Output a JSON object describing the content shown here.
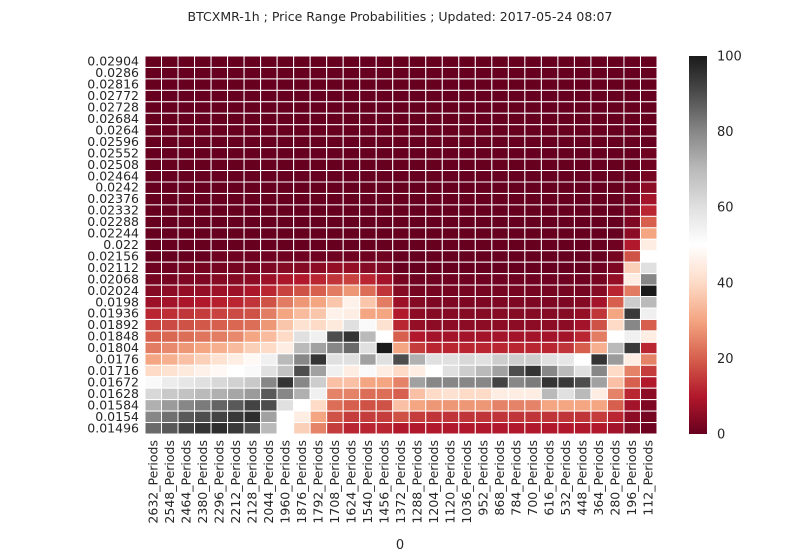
{
  "chart_data": {
    "type": "heatmap",
    "title": "BTCXMR-1h ; Price Range Probabilities ; Updated: 2017-05-24 08:07",
    "xlabel": "0",
    "ylabel": "",
    "x_categories": [
      "2632_Periods",
      "2548_Periods",
      "2464_Periods",
      "2380_Periods",
      "2296_Periods",
      "2212_Periods",
      "2128_Periods",
      "2044_Periods",
      "1960_Periods",
      "1876_Periods",
      "1792_Periods",
      "1708_Periods",
      "1624_Periods",
      "1540_Periods",
      "1456_Periods",
      "1372_Periods",
      "1288_Periods",
      "1204_Periods",
      "1120_Periods",
      "1036_Periods",
      "952_Periods",
      "868_Periods",
      "784_Periods",
      "700_Periods",
      "616_Periods",
      "532_Periods",
      "448_Periods",
      "364_Periods",
      "280_Periods",
      "196_Periods",
      "112_Periods"
    ],
    "y_categories": [
      "0.02904",
      "0.0286",
      "0.02816",
      "0.02772",
      "0.02728",
      "0.02684",
      "0.0264",
      "0.02596",
      "0.02552",
      "0.02508",
      "0.02464",
      "0.0242",
      "0.02376",
      "0.02332",
      "0.02288",
      "0.02244",
      "0.022",
      "0.02156",
      "0.02112",
      "0.02068",
      "0.02024",
      "0.0198",
      "0.01936",
      "0.01892",
      "0.01848",
      "0.01804",
      "0.0176",
      "0.01716",
      "0.01672",
      "0.01628",
      "0.01584",
      "0.0154",
      "0.01496"
    ],
    "values": [
      [
        0,
        0,
        0,
        0,
        0,
        0,
        0,
        0,
        0,
        0,
        0,
        0,
        0,
        0,
        0,
        0,
        0,
        0,
        0,
        0,
        0,
        0,
        0,
        0,
        0,
        0,
        0,
        0,
        0,
        0,
        0
      ],
      [
        0,
        0,
        0,
        0,
        0,
        0,
        0,
        0,
        0,
        0,
        0,
        0,
        0,
        0,
        0,
        0,
        0,
        0,
        0,
        0,
        0,
        0,
        0,
        0,
        0,
        0,
        0,
        0,
        0,
        0,
        0
      ],
      [
        0,
        0,
        0,
        0,
        0,
        0,
        0,
        0,
        0,
        0,
        0,
        0,
        0,
        0,
        0,
        0,
        0,
        0,
        0,
        0,
        0,
        0,
        0,
        0,
        0,
        0,
        0,
        0,
        0,
        0,
        0
      ],
      [
        0,
        0,
        0,
        0,
        0,
        0,
        0,
        0,
        0,
        0,
        0,
        0,
        0,
        0,
        0,
        0,
        0,
        0,
        0,
        0,
        0,
        0,
        0,
        0,
        0,
        0,
        0,
        0,
        0,
        0,
        0
      ],
      [
        0,
        0,
        0,
        0,
        0,
        0,
        0,
        0,
        0,
        0,
        0,
        0,
        0,
        0,
        0,
        0,
        0,
        0,
        0,
        0,
        0,
        0,
        0,
        0,
        0,
        0,
        0,
        0,
        0,
        0,
        0
      ],
      [
        0,
        0,
        0,
        0,
        0,
        0,
        0,
        0,
        0,
        0,
        0,
        0,
        0,
        0,
        0,
        0,
        0,
        0,
        0,
        0,
        0,
        0,
        0,
        0,
        0,
        0,
        0,
        0,
        0,
        0,
        0
      ],
      [
        0,
        0,
        0,
        0,
        0,
        0,
        0,
        0,
        0,
        0,
        0,
        0,
        0,
        0,
        0,
        0,
        0,
        0,
        0,
        0,
        0,
        0,
        0,
        0,
        0,
        0,
        0,
        0,
        0,
        0,
        0
      ],
      [
        0,
        0,
        0,
        0,
        0,
        0,
        0,
        0,
        0,
        0,
        0,
        0,
        0,
        0,
        0,
        0,
        0,
        0,
        0,
        0,
        0,
        0,
        0,
        0,
        0,
        0,
        0,
        0,
        0,
        0,
        0
      ],
      [
        0,
        0,
        0,
        0,
        0,
        0,
        0,
        0,
        0,
        0,
        0,
        0,
        0,
        0,
        0,
        0,
        0,
        0,
        0,
        0,
        0,
        0,
        0,
        0,
        0,
        0,
        0,
        0,
        0,
        0,
        1
      ],
      [
        0,
        0,
        0,
        0,
        0,
        0,
        0,
        0,
        0,
        0,
        0,
        0,
        0,
        0,
        0,
        0,
        0,
        0,
        0,
        0,
        0,
        0,
        0,
        0,
        0,
        0,
        0,
        0,
        0,
        0,
        1
      ],
      [
        0,
        0,
        0,
        0,
        0,
        0,
        0,
        0,
        0,
        0,
        0,
        0,
        0,
        0,
        0,
        0,
        0,
        0,
        0,
        0,
        0,
        0,
        0,
        0,
        0,
        0,
        0,
        0,
        0,
        0,
        2
      ],
      [
        0,
        0,
        0,
        0,
        0,
        0,
        0,
        0,
        0,
        0,
        0,
        0,
        0,
        0,
        0,
        0,
        0,
        0,
        0,
        0,
        0,
        0,
        0,
        0,
        0,
        0,
        0,
        0,
        0,
        1,
        5
      ],
      [
        0,
        0,
        0,
        0,
        0,
        0,
        0,
        0,
        0,
        0,
        0,
        0,
        0,
        0,
        0,
        0,
        0,
        0,
        0,
        0,
        0,
        0,
        0,
        0,
        0,
        0,
        0,
        0,
        0,
        1,
        8
      ],
      [
        0,
        0,
        0,
        0,
        0,
        0,
        0,
        0,
        0,
        0,
        0,
        0,
        0,
        0,
        0,
        0,
        0,
        0,
        0,
        0,
        0,
        0,
        0,
        0,
        0,
        0,
        0,
        0,
        0,
        2,
        12
      ],
      [
        0,
        0,
        0,
        0,
        0,
        0,
        0,
        0,
        0,
        0,
        0,
        0,
        0,
        0,
        0,
        0,
        0,
        0,
        0,
        0,
        0,
        0,
        0,
        0,
        0,
        0,
        0,
        0,
        0,
        3,
        20
      ],
      [
        0,
        0,
        0,
        0,
        0,
        0,
        0,
        0,
        0,
        0,
        0,
        0,
        0,
        0,
        0,
        0,
        0,
        0,
        0,
        0,
        0,
        0,
        0,
        0,
        0,
        0,
        0,
        0,
        0,
        5,
        30
      ],
      [
        0,
        0,
        0,
        0,
        0,
        0,
        0,
        0,
        0,
        0,
        0,
        0,
        0,
        0,
        0,
        0,
        0,
        0,
        0,
        0,
        0,
        0,
        0,
        0,
        0,
        0,
        0,
        0,
        1,
        10,
        45
      ],
      [
        0,
        0,
        0,
        0,
        1,
        1,
        1,
        1,
        1,
        1,
        1,
        1,
        1,
        1,
        1,
        0,
        0,
        0,
        0,
        0,
        0,
        0,
        0,
        0,
        0,
        0,
        0,
        0,
        2,
        18,
        50
      ],
      [
        1,
        1,
        2,
        2,
        2,
        2,
        2,
        3,
        4,
        4,
        5,
        6,
        6,
        4,
        3,
        0,
        0,
        0,
        0,
        0,
        0,
        0,
        0,
        0,
        0,
        0,
        0,
        1,
        3,
        38,
        60
      ],
      [
        2,
        2,
        3,
        3,
        4,
        4,
        5,
        7,
        9,
        10,
        12,
        14,
        16,
        12,
        8,
        2,
        1,
        1,
        1,
        1,
        1,
        1,
        1,
        1,
        1,
        1,
        1,
        2,
        6,
        45,
        80
      ],
      [
        4,
        5,
        6,
        6,
        7,
        7,
        9,
        12,
        16,
        18,
        20,
        24,
        28,
        22,
        14,
        4,
        2,
        2,
        2,
        2,
        2,
        2,
        2,
        2,
        2,
        2,
        2,
        4,
        12,
        24,
        100
      ],
      [
        7,
        8,
        9,
        10,
        11,
        12,
        14,
        18,
        24,
        28,
        30,
        36,
        46,
        36,
        24,
        7,
        4,
        3,
        3,
        3,
        3,
        3,
        3,
        3,
        3,
        3,
        4,
        8,
        20,
        65,
        70
      ],
      [
        12,
        13,
        14,
        15,
        16,
        17,
        18,
        24,
        30,
        34,
        36,
        46,
        45,
        30,
        30,
        10,
        5,
        4,
        4,
        4,
        4,
        4,
        4,
        4,
        4,
        4,
        6,
        14,
        30,
        94,
        55
      ],
      [
        16,
        17,
        18,
        19,
        20,
        21,
        22,
        28,
        36,
        42,
        40,
        44,
        60,
        52,
        42,
        12,
        6,
        5,
        5,
        5,
        5,
        5,
        5,
        5,
        5,
        5,
        8,
        18,
        40,
        80,
        20
      ],
      [
        20,
        21,
        22,
        23,
        24,
        26,
        30,
        34,
        40,
        60,
        55,
        90,
        95,
        70,
        50,
        20,
        10,
        8,
        8,
        8,
        8,
        8,
        8,
        8,
        8,
        8,
        12,
        24,
        50,
        55,
        45
      ],
      [
        24,
        26,
        28,
        30,
        32,
        34,
        38,
        40,
        45,
        70,
        75,
        80,
        85,
        60,
        100,
        30,
        15,
        12,
        12,
        12,
        12,
        12,
        12,
        12,
        12,
        14,
        20,
        32,
        70,
        94,
        12
      ],
      [
        30,
        32,
        35,
        38,
        42,
        45,
        48,
        55,
        70,
        80,
        95,
        60,
        60,
        75,
        60,
        90,
        72,
        60,
        60,
        62,
        60,
        65,
        65,
        65,
        60,
        58,
        50,
        95,
        76,
        45,
        25
      ],
      [
        40,
        42,
        44,
        46,
        48,
        50,
        52,
        60,
        68,
        90,
        75,
        55,
        45,
        52,
        45,
        40,
        45,
        50,
        60,
        65,
        70,
        75,
        90,
        95,
        80,
        70,
        60,
        80,
        40,
        25,
        15
      ],
      [
        52,
        56,
        58,
        60,
        62,
        64,
        66,
        80,
        95,
        80,
        65,
        35,
        35,
        30,
        30,
        25,
        75,
        80,
        80,
        80,
        80,
        92,
        80,
        82,
        95,
        94,
        90,
        75,
        35,
        20,
        10
      ],
      [
        62,
        66,
        68,
        70,
        72,
        74,
        76,
        88,
        80,
        72,
        55,
        25,
        25,
        22,
        22,
        20,
        35,
        40,
        42,
        40,
        40,
        45,
        45,
        45,
        70,
        60,
        70,
        45,
        25,
        12,
        5
      ],
      [
        72,
        76,
        80,
        82,
        86,
        88,
        92,
        90,
        60,
        50,
        40,
        22,
        20,
        18,
        18,
        35,
        30,
        28,
        28,
        28,
        28,
        25,
        25,
        25,
        30,
        30,
        30,
        30,
        20,
        8,
        3
      ],
      [
        80,
        84,
        88,
        90,
        92,
        94,
        96,
        75,
        50,
        45,
        30,
        18,
        15,
        15,
        15,
        18,
        15,
        14,
        14,
        14,
        14,
        14,
        14,
        14,
        14,
        14,
        14,
        15,
        12,
        5,
        2
      ],
      [
        85,
        88,
        92,
        95,
        96,
        94,
        90,
        70,
        50,
        38,
        25,
        15,
        12,
        12,
        12,
        10,
        10,
        10,
        10,
        10,
        10,
        10,
        10,
        10,
        10,
        10,
        10,
        10,
        8,
        4,
        1
      ]
    ],
    "zlim": [
      0,
      100
    ],
    "colorbar_ticks": [
      0,
      20,
      40,
      60,
      80,
      100
    ],
    "colormap": [
      "#67001f",
      "#b2182b",
      "#d6604d",
      "#f4a582",
      "#fddbc7",
      "#ffffff",
      "#e0e0e0",
      "#bababa",
      "#878787",
      "#4d4d4d",
      "#1a1a1a"
    ],
    "cell_border": "#ffffff",
    "grid": false,
    "legend": "colorbar-right"
  }
}
